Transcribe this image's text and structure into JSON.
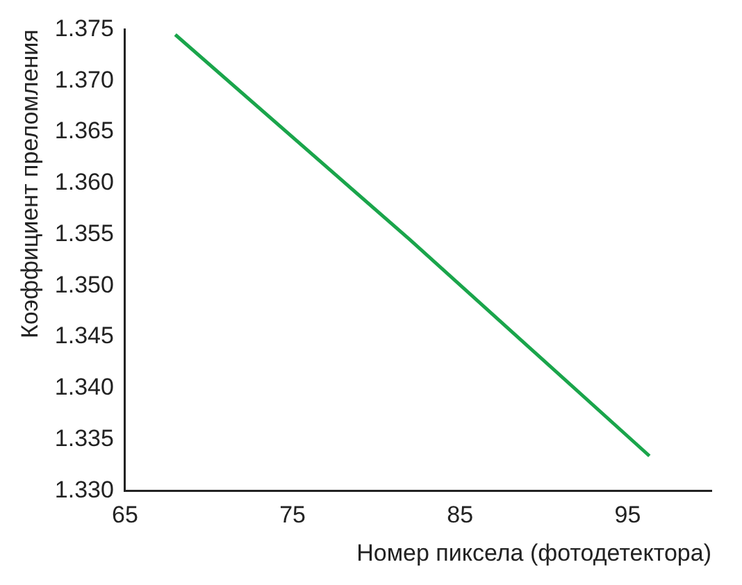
{
  "chart_data": {
    "type": "line",
    "xlabel": "Номер пиксела (фотодетектора)",
    "ylabel": "Коэффициент преломления",
    "x": [
      68,
      82,
      96.3
    ],
    "series": [
      {
        "color": "#1aa54b",
        "values": [
          1.3745,
          1.3545,
          1.3334
        ]
      }
    ],
    "xlim": [
      65,
      100
    ],
    "xticks": [
      65,
      75,
      85,
      95
    ],
    "ylim": [
      1.33,
      1.375
    ],
    "yticks": [
      {
        "value": 1.33,
        "label": "1.330"
      },
      1.335,
      {
        "value": 1.34,
        "label": "1.340"
      },
      1.345,
      {
        "value": 1.35,
        "label": "1.350"
      },
      1.355,
      {
        "value": 1.36,
        "label": "1.360"
      },
      1.365,
      {
        "value": 1.37,
        "label": "1.370"
      },
      1.375
    ],
    "grid": false,
    "legend": false,
    "marker": "none",
    "line_style": "solid"
  }
}
